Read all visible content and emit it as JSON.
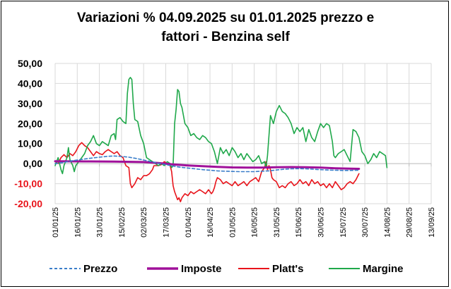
{
  "chart_data": {
    "type": "line",
    "title_line1": "Variazioni % 04.09.2025 su 01.01.2025 prezzo e",
    "title_line2": "fattori - Benzina self",
    "xlabel": "",
    "ylabel": "",
    "ylim": [
      -20,
      50
    ],
    "y_ticks": [
      {
        "value": 50,
        "label": "50,00"
      },
      {
        "value": 40,
        "label": "40,00"
      },
      {
        "value": 30,
        "label": "30,00"
      },
      {
        "value": 20,
        "label": "20,00"
      },
      {
        "value": 10,
        "label": "10,00"
      },
      {
        "value": 0,
        "label": "0,00"
      },
      {
        "value": -10,
        "label": "-10,00"
      },
      {
        "value": -20,
        "label": "-20,00"
      }
    ],
    "positive_tick_color": "#000000",
    "negative_tick_color": "#e8141b",
    "x_tick_labels": [
      "01/01/25",
      "16/01/25",
      "31/01/25",
      "15/02/25",
      "02/03/25",
      "17/03/25",
      "01/04/25",
      "16/04/25",
      "01/05/25",
      "16/05/25",
      "31/05/25",
      "15/06/25",
      "30/06/25",
      "15/07/25",
      "30/07/25",
      "14/08/25",
      "29/08/25",
      "13/09/25"
    ],
    "grid": true,
    "legend_position": "bottom",
    "series": [
      {
        "name": "Prezzo",
        "color": "#3a7dc9",
        "dash": true,
        "points": [
          [
            0,
            0
          ],
          [
            5,
            0.5
          ],
          [
            10,
            1.2
          ],
          [
            15,
            1.8
          ],
          [
            20,
            2.3
          ],
          [
            25,
            2.8
          ],
          [
            30,
            3.2
          ],
          [
            35,
            3.6
          ],
          [
            40,
            3.8
          ],
          [
            45,
            3.6
          ],
          [
            50,
            3.2
          ],
          [
            55,
            2.6
          ],
          [
            60,
            1.8
          ],
          [
            65,
            1
          ],
          [
            70,
            0.2
          ],
          [
            75,
            -0.5
          ],
          [
            80,
            -1.2
          ],
          [
            85,
            -1.8
          ],
          [
            90,
            -2.2
          ],
          [
            95,
            -2.6
          ],
          [
            100,
            -3
          ],
          [
            105,
            -3.3
          ],
          [
            110,
            -3.6
          ],
          [
            115,
            -3.8
          ],
          [
            120,
            -3.9
          ],
          [
            125,
            -4
          ],
          [
            130,
            -4
          ],
          [
            135,
            -4
          ],
          [
            140,
            -3.8
          ],
          [
            145,
            -3.6
          ],
          [
            150,
            -3.2
          ],
          [
            155,
            -2.8
          ],
          [
            160,
            -2.6
          ],
          [
            165,
            -2.5
          ],
          [
            170,
            -2.6
          ],
          [
            175,
            -2.8
          ],
          [
            180,
            -3
          ],
          [
            185,
            -3.2
          ],
          [
            190,
            -3.3
          ],
          [
            195,
            -3.4
          ],
          [
            200,
            -3.4
          ],
          [
            206,
            -3.3
          ]
        ]
      },
      {
        "name": "Imposte",
        "color": "#a0109a",
        "dash": false,
        "points": [
          [
            0,
            1.2
          ],
          [
            20,
            1.1
          ],
          [
            40,
            1
          ],
          [
            60,
            0.8
          ],
          [
            70,
            0.3
          ],
          [
            80,
            -0.4
          ],
          [
            90,
            -0.9
          ],
          [
            100,
            -1.3
          ],
          [
            110,
            -1.6
          ],
          [
            120,
            -1.9
          ],
          [
            130,
            -2
          ],
          [
            140,
            -2
          ],
          [
            150,
            -1.8
          ],
          [
            160,
            -1.7
          ],
          [
            170,
            -1.8
          ],
          [
            180,
            -2
          ],
          [
            190,
            -2.3
          ],
          [
            200,
            -2.5
          ],
          [
            206,
            -2.6
          ]
        ]
      },
      {
        "name": "Platt's",
        "color": "#e8141b",
        "dash": false,
        "points": [
          [
            0,
            1
          ],
          [
            2,
            0
          ],
          [
            4,
            3
          ],
          [
            6,
            4.5
          ],
          [
            8,
            3
          ],
          [
            10,
            5
          ],
          [
            12,
            4
          ],
          [
            14,
            6
          ],
          [
            16,
            9
          ],
          [
            18,
            10.5
          ],
          [
            20,
            9
          ],
          [
            22,
            8
          ],
          [
            24,
            6
          ],
          [
            26,
            4
          ],
          [
            28,
            6
          ],
          [
            30,
            5
          ],
          [
            32,
            4.5
          ],
          [
            34,
            6
          ],
          [
            36,
            7
          ],
          [
            38,
            6
          ],
          [
            40,
            5
          ],
          [
            42,
            6
          ],
          [
            44,
            4
          ],
          [
            46,
            3
          ],
          [
            48,
            -1
          ],
          [
            50,
            -2
          ],
          [
            51,
            -10
          ],
          [
            52,
            -12
          ],
          [
            54,
            -10
          ],
          [
            56,
            -7
          ],
          [
            58,
            -8
          ],
          [
            60,
            -6
          ],
          [
            62,
            -6
          ],
          [
            64,
            -5
          ],
          [
            66,
            -3
          ],
          [
            67,
            -1
          ],
          [
            68,
            -1
          ],
          [
            70,
            -1
          ],
          [
            72,
            -0.5
          ],
          [
            74,
            1
          ],
          [
            76,
            0
          ],
          [
            78,
            -1
          ],
          [
            79,
            -4
          ],
          [
            80,
            -11
          ],
          [
            81,
            -14
          ],
          [
            82,
            -16
          ],
          [
            83,
            -18
          ],
          [
            84,
            -17
          ],
          [
            85,
            -19
          ],
          [
            86,
            -17
          ],
          [
            88,
            -15
          ],
          [
            90,
            -16
          ],
          [
            92,
            -14
          ],
          [
            94,
            -15
          ],
          [
            96,
            -14
          ],
          [
            98,
            -13
          ],
          [
            100,
            -14
          ],
          [
            102,
            -15
          ],
          [
            104,
            -13
          ],
          [
            106,
            -15
          ],
          [
            107,
            -14
          ],
          [
            108,
            -12
          ],
          [
            109,
            -9
          ],
          [
            110,
            -7
          ],
          [
            112,
            -8
          ],
          [
            114,
            -10
          ],
          [
            116,
            -9
          ],
          [
            118,
            -10
          ],
          [
            120,
            -11
          ],
          [
            122,
            -9
          ],
          [
            124,
            -11
          ],
          [
            126,
            -10
          ],
          [
            128,
            -9
          ],
          [
            130,
            -11
          ],
          [
            132,
            -9
          ],
          [
            134,
            -8
          ],
          [
            136,
            -7
          ],
          [
            138,
            -9
          ],
          [
            140,
            -4
          ],
          [
            142,
            -2
          ],
          [
            143,
            1
          ],
          [
            144,
            -3
          ],
          [
            145,
            -1
          ],
          [
            146,
            -3
          ],
          [
            147,
            -7
          ],
          [
            148,
            -8
          ],
          [
            150,
            -9
          ],
          [
            152,
            -12
          ],
          [
            154,
            -11
          ],
          [
            156,
            -12
          ],
          [
            158,
            -10
          ],
          [
            160,
            -9
          ],
          [
            162,
            -11
          ],
          [
            164,
            -10
          ],
          [
            166,
            -8
          ],
          [
            168,
            -10
          ],
          [
            170,
            -9
          ],
          [
            172,
            -11
          ],
          [
            174,
            -8
          ],
          [
            176,
            -10
          ],
          [
            178,
            -9
          ],
          [
            180,
            -11
          ],
          [
            182,
            -10
          ],
          [
            184,
            -12
          ],
          [
            186,
            -10
          ],
          [
            188,
            -12
          ],
          [
            190,
            -9
          ],
          [
            192,
            -11
          ],
          [
            194,
            -13
          ],
          [
            196,
            -12
          ],
          [
            198,
            -10
          ],
          [
            200,
            -9
          ],
          [
            202,
            -10
          ],
          [
            204,
            -8
          ],
          [
            206,
            -5
          ]
        ]
      },
      {
        "name": "Margine",
        "color": "#1fa84a",
        "dash": false,
        "points": [
          [
            0,
            -1
          ],
          [
            2,
            3
          ],
          [
            4,
            -3
          ],
          [
            5,
            -5
          ],
          [
            6,
            -1
          ],
          [
            8,
            3
          ],
          [
            9,
            8
          ],
          [
            10,
            2
          ],
          [
            12,
            -1
          ],
          [
            13,
            -4
          ],
          [
            14,
            -1
          ],
          [
            16,
            1
          ],
          [
            18,
            3
          ],
          [
            20,
            5
          ],
          [
            22,
            9
          ],
          [
            24,
            11
          ],
          [
            26,
            14
          ],
          [
            28,
            10
          ],
          [
            30,
            9
          ],
          [
            32,
            11
          ],
          [
            34,
            10
          ],
          [
            36,
            9
          ],
          [
            38,
            14
          ],
          [
            40,
            15
          ],
          [
            41,
            12
          ],
          [
            42,
            22
          ],
          [
            44,
            23
          ],
          [
            46,
            21
          ],
          [
            48,
            20
          ],
          [
            49,
            35
          ],
          [
            50,
            42
          ],
          [
            51,
            43
          ],
          [
            52,
            42
          ],
          [
            53,
            30
          ],
          [
            54,
            22
          ],
          [
            56,
            21
          ],
          [
            58,
            14
          ],
          [
            60,
            10
          ],
          [
            62,
            3
          ],
          [
            64,
            2
          ],
          [
            66,
            1
          ],
          [
            68,
            0
          ],
          [
            70,
            -1
          ],
          [
            72,
            0
          ],
          [
            74,
            -1
          ],
          [
            76,
            1
          ],
          [
            78,
            0
          ],
          [
            79,
            -2
          ],
          [
            80,
            -1
          ],
          [
            81,
            20
          ],
          [
            82,
            27
          ],
          [
            83,
            37
          ],
          [
            84,
            36
          ],
          [
            85,
            30
          ],
          [
            86,
            28
          ],
          [
            88,
            20
          ],
          [
            90,
            18
          ],
          [
            92,
            14
          ],
          [
            94,
            15
          ],
          [
            96,
            13
          ],
          [
            98,
            12
          ],
          [
            100,
            14
          ],
          [
            102,
            13
          ],
          [
            104,
            11
          ],
          [
            106,
            10
          ],
          [
            108,
            6
          ],
          [
            110,
            0
          ],
          [
            112,
            8
          ],
          [
            114,
            5
          ],
          [
            116,
            7
          ],
          [
            118,
            4
          ],
          [
            120,
            8
          ],
          [
            122,
            6
          ],
          [
            124,
            3
          ],
          [
            126,
            5
          ],
          [
            128,
            2
          ],
          [
            130,
            5
          ],
          [
            132,
            3
          ],
          [
            134,
            1
          ],
          [
            136,
            2
          ],
          [
            138,
            4
          ],
          [
            140,
            0
          ],
          [
            142,
            1
          ],
          [
            143,
            -2
          ],
          [
            144,
            4
          ],
          [
            146,
            24
          ],
          [
            148,
            20
          ],
          [
            150,
            26
          ],
          [
            152,
            29
          ],
          [
            154,
            26
          ],
          [
            156,
            25
          ],
          [
            158,
            23
          ],
          [
            160,
            20
          ],
          [
            162,
            15
          ],
          [
            164,
            18
          ],
          [
            166,
            16
          ],
          [
            168,
            18
          ],
          [
            170,
            11
          ],
          [
            172,
            17
          ],
          [
            174,
            13
          ],
          [
            176,
            11
          ],
          [
            178,
            16
          ],
          [
            180,
            20
          ],
          [
            182,
            18
          ],
          [
            184,
            20
          ],
          [
            186,
            19
          ],
          [
            188,
            11
          ],
          [
            189,
            4
          ],
          [
            190,
            3
          ],
          [
            192,
            5
          ],
          [
            194,
            6
          ],
          [
            196,
            7
          ],
          [
            198,
            4
          ],
          [
            200,
            1
          ],
          [
            202,
            17
          ],
          [
            204,
            16
          ],
          [
            206,
            13
          ],
          [
            208,
            6
          ],
          [
            210,
            4
          ],
          [
            212,
            0
          ],
          [
            214,
            2
          ],
          [
            216,
            5
          ],
          [
            218,
            3
          ],
          [
            220,
            6
          ],
          [
            222,
            5
          ],
          [
            224,
            4
          ],
          [
            225,
            -2
          ]
        ]
      }
    ]
  }
}
